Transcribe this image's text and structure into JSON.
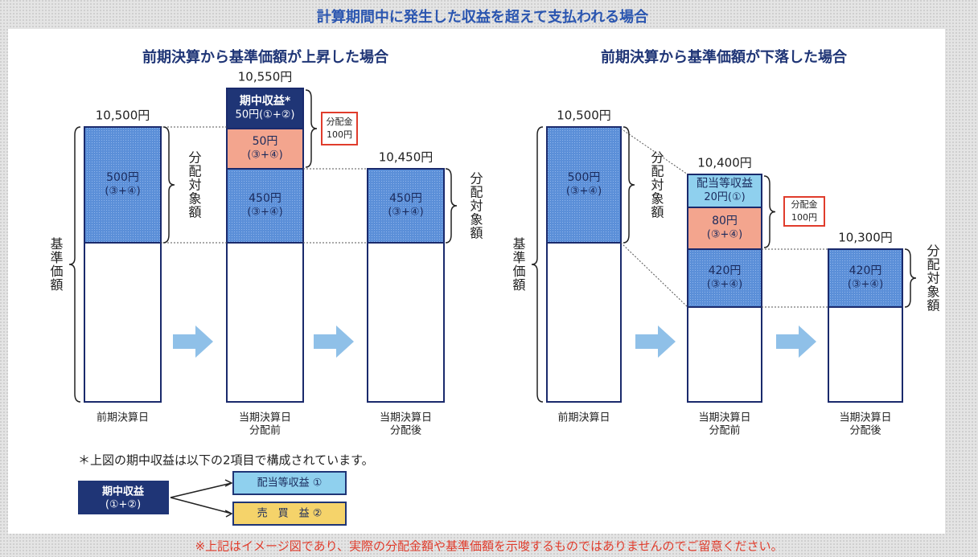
{
  "title": "計算期間中に発生した収益を超えて支払われる場合",
  "rise": {
    "subtitle": "前期決算から基準価額が上昇した場合",
    "prices": [
      "10,500円",
      "10,550円",
      "10,450円"
    ],
    "segments": [
      [
        "500円",
        "(③+④)"
      ],
      [
        "期中収益*",
        "50円(①+②)"
      ],
      [
        "50円",
        "(③+④)"
      ],
      [
        "450円",
        "(③+④)"
      ],
      [
        "450円",
        "(③+④)"
      ]
    ],
    "distribution": [
      "分配金",
      "100円"
    ],
    "nav_label": "基準価額",
    "distributable": [
      "分配対象額",
      "分配対象額"
    ],
    "dates": [
      [
        "前期決算日"
      ],
      [
        "当期決算日",
        "分配前"
      ],
      [
        "当期決算日",
        "分配後"
      ]
    ]
  },
  "fall": {
    "subtitle": "前期決算から基準価額が下落した場合",
    "prices": [
      "10,500円",
      "10,400円",
      "10,300円"
    ],
    "segments": [
      [
        "500円",
        "(③+④)"
      ],
      [
        "配当等収益",
        "20円(①)"
      ],
      [
        "80円",
        "(③+④)"
      ],
      [
        "420円",
        "(③+④)"
      ],
      [
        "420円",
        "(③+④)"
      ]
    ],
    "distribution": [
      "分配金",
      "100円"
    ],
    "nav_label": "基準価額",
    "distributable": [
      "分配対象額",
      "分配対象額"
    ],
    "dates": [
      [
        "前期決算日"
      ],
      [
        "当期決算日",
        "分配前"
      ],
      [
        "当期決算日",
        "分配後"
      ]
    ]
  },
  "note": "＊上図の期中収益は以下の2項目で構成されています。",
  "legend": {
    "source": [
      "期中収益",
      "(①+②)"
    ],
    "items": [
      "配当等収益 ①",
      "売　買　益 ②"
    ]
  },
  "footer": "※上記はイメージ図であり、実際の分配金額や基準価額を示唆するものではありませんのでご留意ください。"
}
